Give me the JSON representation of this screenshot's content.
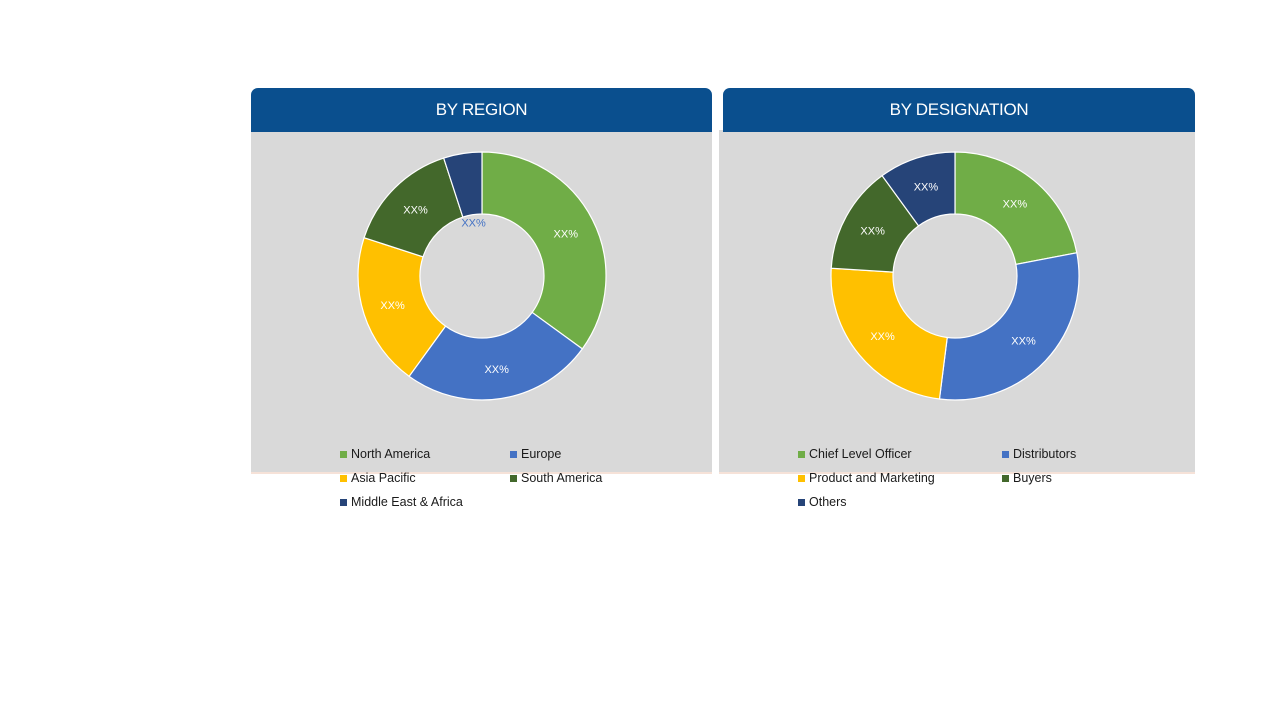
{
  "chart_data": [
    {
      "type": "pie",
      "style": "donut",
      "title": "BY REGION",
      "categories": [
        "North America",
        "Europe",
        "Asia Pacific",
        "South America",
        "Middle East & Africa"
      ],
      "values": [
        35,
        25,
        20,
        15,
        5
      ],
      "colors": [
        "#70ad47",
        "#4472c4",
        "#ffc000",
        "#43682b",
        "#264478"
      ],
      "data_labels": [
        "XX%",
        "XX%",
        "XX%",
        "XX%",
        "XX%"
      ],
      "label_colors": [
        "#ffffff",
        "#ffffff",
        "#ffffff",
        "#ffffff",
        "#4472c4"
      ],
      "legend": "bottom"
    },
    {
      "type": "pie",
      "style": "donut",
      "title": "BY DESIGNATION",
      "categories": [
        "Chief Level Officer",
        "Distributors",
        "Product and Marketing",
        "Buyers",
        "Others"
      ],
      "values": [
        22,
        30,
        24,
        14,
        10
      ],
      "colors": [
        "#70ad47",
        "#4472c4",
        "#ffc000",
        "#43682b",
        "#264478"
      ],
      "data_labels": [
        "XX%",
        "XX%",
        "XX%",
        "XX%",
        "XX%"
      ],
      "label_colors": [
        "#ffffff",
        "#ffffff",
        "#ffffff",
        "#ffffff",
        "#ffffff"
      ],
      "legend": "bottom"
    }
  ]
}
